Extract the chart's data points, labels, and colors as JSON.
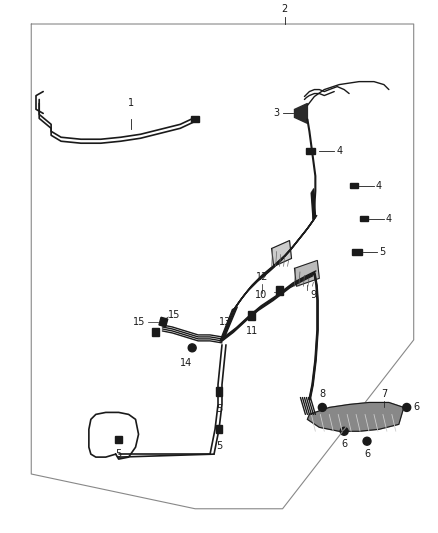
{
  "background_color": "#ffffff",
  "line_color": "#1a1a1a",
  "figure_size": [
    4.38,
    5.33
  ],
  "dpi": 100
}
